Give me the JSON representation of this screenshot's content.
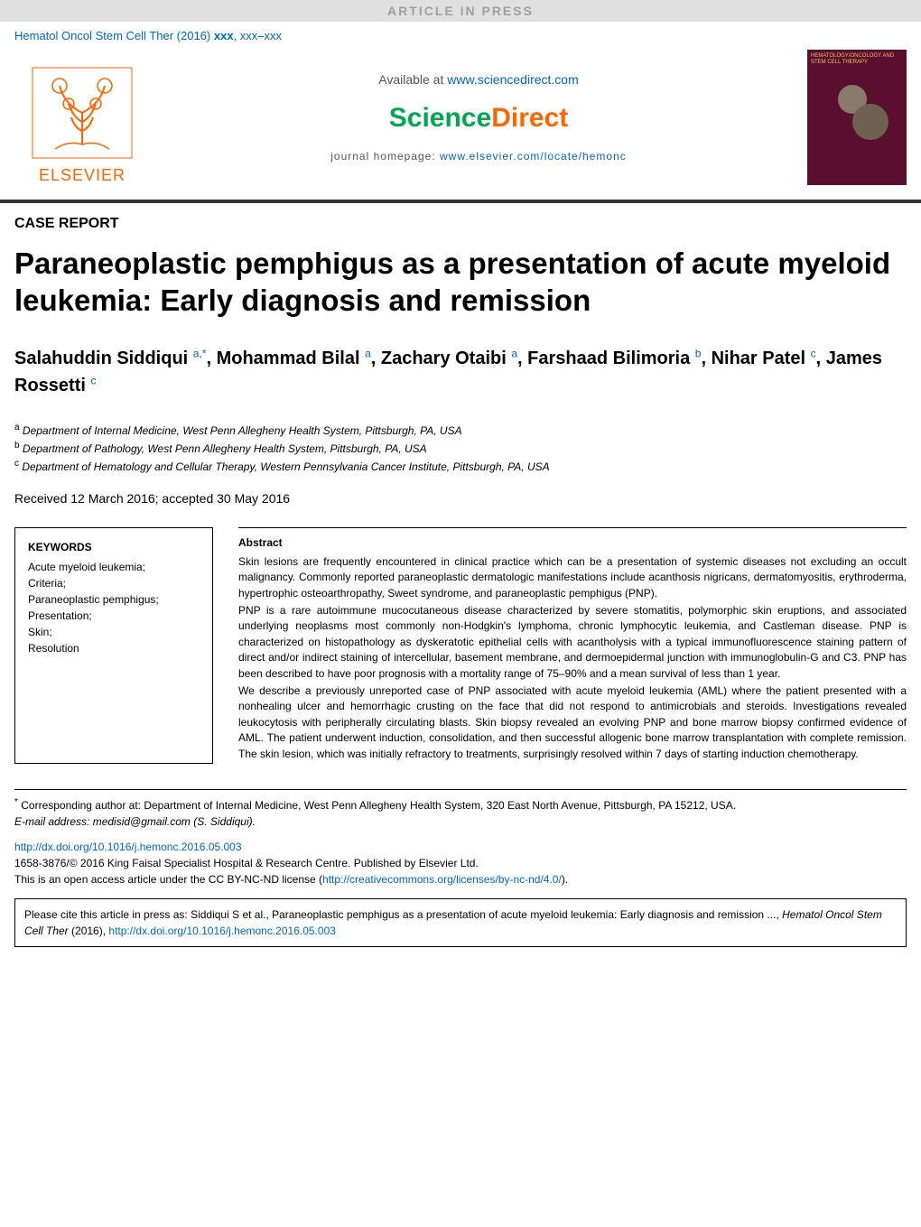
{
  "header": {
    "article_in_press": "ARTICLE IN PRESS",
    "journal_ref_prefix": "Hematol Oncol Stem Cell Ther (2016) ",
    "journal_ref_vol": "xxx",
    "journal_ref_pages": ", xxx–xxx",
    "available_text": "Available at ",
    "available_url": "www.sciencedirect.com",
    "sciencedirect_science": "Science",
    "sciencedirect_direct": "Direct",
    "homepage_label": "journal homepage: ",
    "homepage_url": "www.elsevier.com/locate/hemonc",
    "elsevier": "ELSEVIER",
    "cover_title": "HEMATOLOGY/ONCOLOGY AND STEM CELL THERAPY"
  },
  "article": {
    "case_report": "CASE REPORT",
    "title": "Paraneoplastic pemphigus as a presentation of acute myeloid leukemia: Early diagnosis and remission",
    "authors_html": "Salahuddin Siddiqui <sup>a,*</sup>, Mohammad Bilal <sup>a</sup>, Zachary Otaibi <sup>a</sup>, Farshaad Bilimoria <sup>b</sup>, Nihar Patel <sup>c</sup>, James Rossetti <sup>c</sup>",
    "affiliations": {
      "a": "Department of Internal Medicine, West Penn Allegheny Health System, Pittsburgh, PA, USA",
      "b": "Department of Pathology, West Penn Allegheny Health System, Pittsburgh, PA, USA",
      "c": "Department of Hematology and Cellular Therapy, Western Pennsylvania Cancer Institute, Pittsburgh, PA, USA"
    },
    "received": "Received 12 March 2016; accepted 30 May 2016"
  },
  "keywords": {
    "heading": "KEYWORDS",
    "items": [
      "Acute myeloid leukemia;",
      "Criteria;",
      "Paraneoplastic pemphigus;",
      "Presentation;",
      "Skin;",
      "Resolution"
    ]
  },
  "abstract": {
    "heading": "Abstract",
    "p1": "Skin lesions are frequently encountered in clinical practice which can be a presentation of systemic diseases not excluding an occult malignancy. Commonly reported paraneoplastic dermatologic manifestations include acanthosis nigricans, dermatomyositis, erythroderma, hypertrophic osteoarthropathy, Sweet syndrome, and paraneoplastic pemphigus (PNP).",
    "p2": "PNP is a rare autoimmune mucocutaneous disease characterized by severe stomatitis, polymorphic skin eruptions, and associated underlying neoplasms most commonly non-Hodgkin's lymphoma, chronic lymphocytic leukemia, and Castleman disease. PNP is characterized on histopathology as dyskeratotic epithelial cells with acantholysis with a typical immunofluorescence staining pattern of direct and/or indirect staining of intercellular, basement membrane, and dermoepidermal junction with immunoglobulin-G and C3. PNP has been described to have poor prognosis with a mortality range of 75–90% and a mean survival of less than 1 year.",
    "p3": "We describe a previously unreported case of PNP associated with acute myeloid leukemia (AML) where the patient presented with a nonhealing ulcer and hemorrhagic crusting on the face that did not respond to antimicrobials and steroids. Investigations revealed leukocytosis with peripherally circulating blasts. Skin biopsy revealed an evolving PNP and bone marrow biopsy confirmed evidence of AML. The patient underwent induction, consolidation, and then successful allogenic bone marrow transplantation with complete remission. The skin lesion, which was initially refractory to treatments, surprisingly resolved within 7 days of starting induction chemotherapy."
  },
  "footer": {
    "corresponding": "Corresponding author at: Department of Internal Medicine, West Penn Allegheny Health System, 320 East North Avenue, Pittsburgh, PA 15212, USA.",
    "email_label": "E-mail address: ",
    "email": "medisid@gmail.com",
    "email_suffix": " (S. Siddiqui).",
    "doi": "http://dx.doi.org/10.1016/j.hemonc.2016.05.003",
    "copyright": "1658-3876/© 2016 King Faisal Specialist Hospital & Research Centre. Published by Elsevier Ltd.",
    "license_prefix": "This is an open access article under the CC BY-NC-ND license (",
    "license_url": "http://creativecommons.org/licenses/by-nc-nd/4.0/",
    "license_suffix": ").",
    "cite_prefix": "Please cite this article in press as: Siddiqui S et al., Paraneoplastic pemphigus as a presentation of acute myeloid leukemia: Early diagnosis and remission ..., ",
    "cite_journal": "Hematol Oncol Stem Cell Ther",
    "cite_year": " (2016), ",
    "cite_doi": "http://dx.doi.org/10.1016/j.hemonc.2016.05.003"
  },
  "colors": {
    "orange": "#ff6600",
    "green": "#00a651",
    "link": "#0066cc",
    "cover_bg": "#5a0f2e",
    "cover_text": "#e8c060",
    "bar_bg": "#e0e0e0",
    "bar_text": "#a0a0a0"
  }
}
